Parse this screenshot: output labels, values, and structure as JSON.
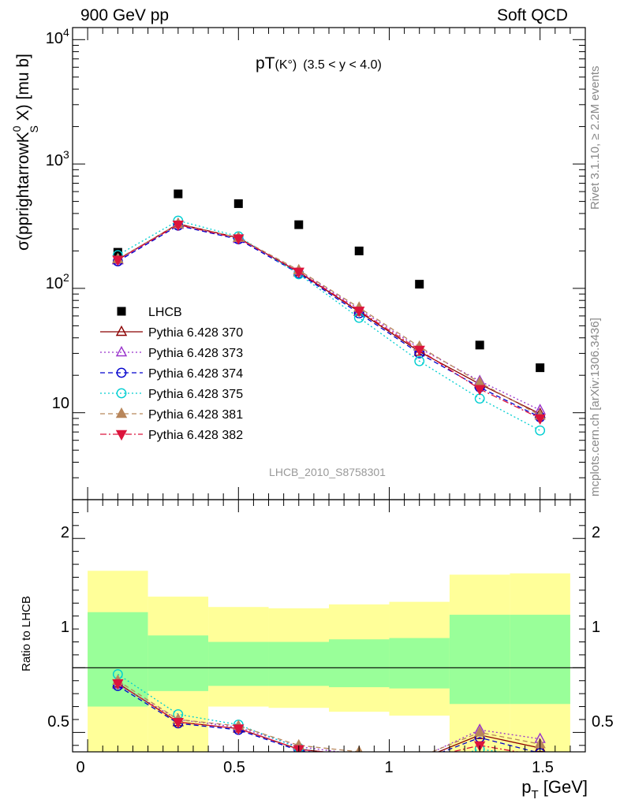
{
  "header": {
    "left": "900 GeV pp",
    "right": "Soft QCD"
  },
  "sidebar": {
    "top": "Rivet 3.1.10, ≥ 2.2M events",
    "bottom": "mcplots.cern.ch [arXiv:1306.3436]"
  },
  "chart_data": [
    {
      "type": "scatter",
      "title_main": "pT",
      "title_particle": "(K°)",
      "title_range": "(3.5 < y < 4.0)",
      "ylabel_main": "σ(pprightarrowK",
      "ylabel_sup": "0",
      "ylabel_sub": "S",
      "ylabel_tail": " X) [mu b]",
      "ytick_labels": [
        {
          "value": 10,
          "base": "10",
          "exp": ""
        },
        {
          "value": 100,
          "base": "10",
          "exp": "2"
        },
        {
          "value": 1000,
          "base": "10",
          "exp": "3"
        },
        {
          "value": 10000,
          "base": "10",
          "exp": "4"
        }
      ],
      "yscale": "log",
      "ylim": [
        2,
        12500
      ],
      "xlim": [
        -0.05,
        1.65
      ],
      "watermark": "LHCB_2010_S8758301",
      "legend_position": "lower-left",
      "series": [
        {
          "name": "LHCB",
          "marker": "square-filled",
          "color": "#000000",
          "line": "none",
          "x": [
            0.1,
            0.3,
            0.5,
            0.7,
            0.9,
            1.1,
            1.3,
            1.5
          ],
          "y": [
            195,
            575,
            480,
            325,
            200,
            108,
            35,
            23
          ]
        },
        {
          "name": "Pythia 6.428 370",
          "marker": "triangle-up-open",
          "color": "#8b0000",
          "line": "solid",
          "x": [
            0.1,
            0.3,
            0.5,
            0.7,
            0.9,
            1.1,
            1.3,
            1.5
          ],
          "y": [
            170,
            330,
            255,
            135,
            65,
            31,
            17,
            9.8
          ]
        },
        {
          "name": "Pythia 6.428 373",
          "marker": "triangle-up-open",
          "color": "#9932cc",
          "line": "dotted",
          "x": [
            0.1,
            0.3,
            0.5,
            0.7,
            0.9,
            1.1,
            1.3,
            1.5
          ],
          "y": [
            168,
            325,
            250,
            138,
            68,
            33,
            18,
            10.5
          ]
        },
        {
          "name": "Pythia 6.428 374",
          "marker": "circle-open",
          "color": "#0000cd",
          "line": "dashed",
          "x": [
            0.1,
            0.3,
            0.5,
            0.7,
            0.9,
            1.1,
            1.3,
            1.5
          ],
          "y": [
            165,
            320,
            248,
            132,
            63,
            30,
            16,
            9.2
          ]
        },
        {
          "name": "Pythia 6.428 375",
          "marker": "circle-open",
          "color": "#00ced1",
          "line": "dotted",
          "x": [
            0.1,
            0.3,
            0.5,
            0.7,
            0.9,
            1.1,
            1.3,
            1.5
          ],
          "y": [
            185,
            350,
            262,
            130,
            58,
            26,
            13,
            7.2
          ]
        },
        {
          "name": "Pythia 6.428 381",
          "marker": "triangle-up-filled",
          "color": "#b8865b",
          "line": "dashed",
          "x": [
            0.1,
            0.3,
            0.5,
            0.7,
            0.9,
            1.1,
            1.3,
            1.5
          ],
          "y": [
            172,
            328,
            255,
            140,
            70,
            34,
            17.5,
            9.5
          ]
        },
        {
          "name": "Pythia 6.428 382",
          "marker": "triangle-down-filled",
          "color": "#dc143c",
          "line": "dashdot",
          "x": [
            0.1,
            0.3,
            0.5,
            0.7,
            0.9,
            1.1,
            1.3,
            1.5
          ],
          "y": [
            170,
            325,
            252,
            136,
            66,
            32,
            15.5,
            9.0
          ]
        }
      ]
    },
    {
      "type": "line",
      "ylabel": "Ratio to LHCB",
      "xlabel_main": "p",
      "xlabel_sub": "T",
      "xlabel_tail": " [GeV]",
      "xlim": [
        -0.05,
        1.65
      ],
      "ylim": [
        0.35,
        2.3
      ],
      "xtick_labels": [
        "0",
        "0.5",
        "1",
        "1.5"
      ],
      "ytick_labels": [
        "0.5",
        "1",
        "2"
      ],
      "reference_line": 1,
      "bands": {
        "edges": [
          0.0,
          0.2,
          0.4,
          0.6,
          0.8,
          1.0,
          1.2,
          1.4,
          1.6
        ],
        "yellow_lo": [
          0.0,
          0.0,
          0.7,
          0.69,
          0.66,
          0.63,
          0.0,
          0.0
        ],
        "yellow_hi": [
          1.75,
          1.55,
          1.47,
          1.46,
          1.49,
          1.51,
          1.72,
          1.73
        ],
        "green_lo": [
          0.7,
          0.82,
          0.86,
          0.86,
          0.85,
          0.84,
          0.72,
          0.72
        ],
        "green_hi": [
          1.43,
          1.25,
          1.2,
          1.2,
          1.22,
          1.23,
          1.41,
          1.41
        ],
        "yellow_color": "#ffff99",
        "green_color": "#99ff99"
      },
      "series": [
        {
          "name": "Pythia 6.428 370",
          "x": [
            0.1,
            0.3,
            0.5,
            0.7,
            0.9,
            1.1,
            1.3,
            1.5
          ],
          "y": [
            0.88,
            0.58,
            0.53,
            0.37,
            0.32,
            0.29,
            0.48,
            0.38
          ]
        },
        {
          "name": "Pythia 6.428 373",
          "x": [
            0.1,
            0.3,
            0.5,
            0.7,
            0.9,
            1.1,
            1.3,
            1.5
          ],
          "y": [
            0.87,
            0.6,
            0.54,
            0.39,
            0.33,
            0.3,
            0.52,
            0.45
          ]
        },
        {
          "name": "Pythia 6.428 374",
          "x": [
            0.1,
            0.3,
            0.5,
            0.7,
            0.9,
            1.1,
            1.3,
            1.5
          ],
          "y": [
            0.86,
            0.57,
            0.52,
            0.36,
            0.31,
            0.28,
            0.46,
            0.34
          ]
        },
        {
          "name": "Pythia 6.428 375",
          "x": [
            0.1,
            0.3,
            0.5,
            0.7,
            0.9,
            1.1,
            1.3,
            1.5
          ],
          "y": [
            0.95,
            0.64,
            0.56,
            0.38,
            0.29,
            0.24,
            0.37,
            0.31
          ]
        },
        {
          "name": "Pythia 6.428 381",
          "x": [
            0.1,
            0.3,
            0.5,
            0.7,
            0.9,
            1.1,
            1.3,
            1.5
          ],
          "y": [
            0.9,
            0.6,
            0.55,
            0.4,
            0.35,
            0.31,
            0.5,
            0.41
          ]
        },
        {
          "name": "Pythia 6.428 382",
          "x": [
            0.1,
            0.3,
            0.5,
            0.7,
            0.9,
            1.1,
            1.3,
            1.5
          ],
          "y": [
            0.88,
            0.58,
            0.53,
            0.37,
            0.32,
            0.29,
            0.4,
            0.32
          ]
        }
      ]
    }
  ]
}
